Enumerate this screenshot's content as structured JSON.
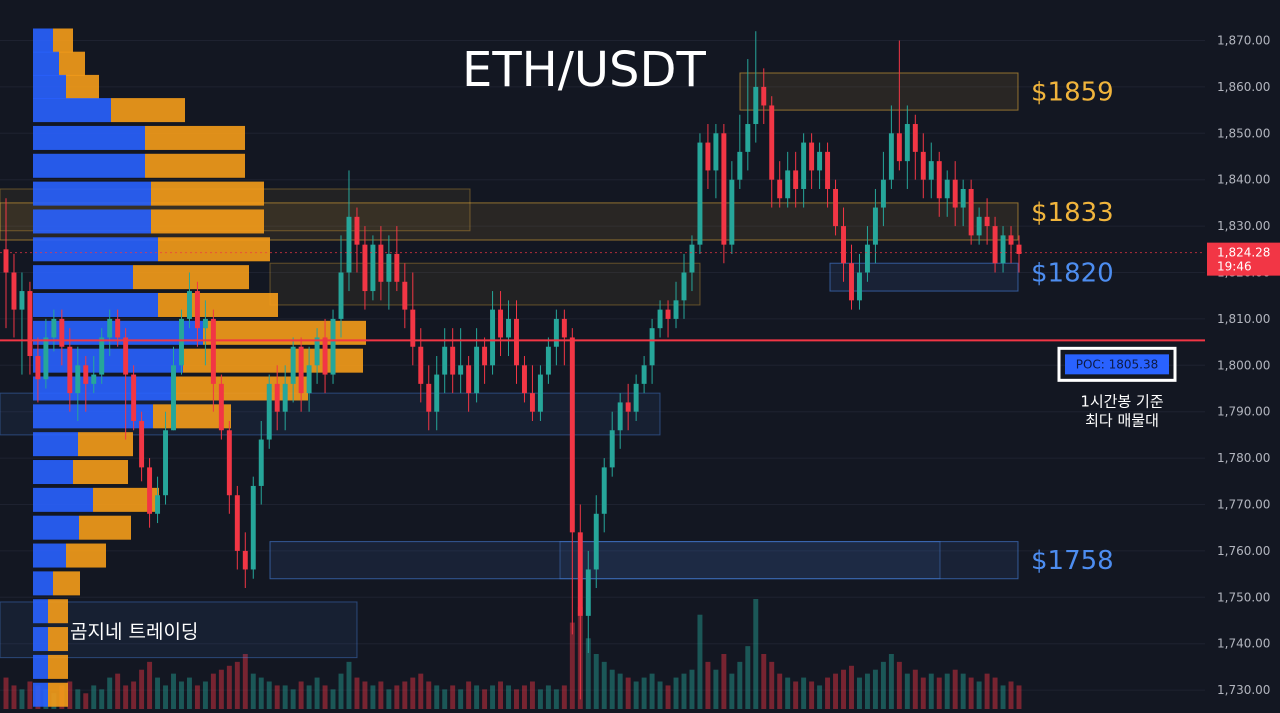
{
  "chart_data": {
    "type": "candlestick",
    "title": "ETH/USDT",
    "symbol": "ETH/USDT",
    "timeframe_note": "1시간봉 기준",
    "y_axis": {
      "ticks": [
        "1,870.00",
        "1,860.00",
        "1,850.00",
        "1,840.00",
        "1,830.00",
        "1,820.00",
        "1,810.00",
        "1,800.00",
        "1,790.00",
        "1,780.00",
        "1,770.00",
        "1,760.00",
        "1,750.00",
        "1,740.00",
        "1,730.00"
      ],
      "ylim": [
        1727,
        1874
      ],
      "position": "right"
    },
    "last_price": {
      "value": 1824.28,
      "label": "1,824.28",
      "countdown": "19:46",
      "color": "#f23645"
    },
    "poc": {
      "value": 1805.38,
      "label": "POC: 1805.38",
      "caption_line1": "1시간봉 기준",
      "caption_line2": "최다 매물대",
      "color": "#f23645"
    },
    "levels": [
      {
        "label": "$1859",
        "value": 1859,
        "zone": [
          1855,
          1863
        ],
        "color": "#f0b43c"
      },
      {
        "label": "$1833",
        "value": 1833,
        "zone": [
          1827,
          1835
        ],
        "color": "#f0b43c"
      },
      {
        "label": "$1820",
        "value": 1820,
        "zone": [
          1816,
          1822
        ],
        "color": "#4d8df0"
      },
      {
        "label": "$1758",
        "value": 1758,
        "zone": [
          1754,
          1762
        ],
        "color": "#4d8df0"
      }
    ],
    "volume_profile": {
      "rows": [
        {
          "price": 1870,
          "buy": 20,
          "sell": 20
        },
        {
          "price": 1865,
          "buy": 26,
          "sell": 26
        },
        {
          "price": 1860,
          "buy": 33,
          "sell": 33
        },
        {
          "price": 1855,
          "buy": 78,
          "sell": 74
        },
        {
          "price": 1849,
          "buy": 112,
          "sell": 100
        },
        {
          "price": 1843,
          "buy": 112,
          "sell": 100
        },
        {
          "price": 1837,
          "buy": 118,
          "sell": 113
        },
        {
          "price": 1831,
          "buy": 118,
          "sell": 113
        },
        {
          "price": 1825,
          "buy": 125,
          "sell": 112
        },
        {
          "price": 1819,
          "buy": 100,
          "sell": 116
        },
        {
          "price": 1813,
          "buy": 125,
          "sell": 120
        },
        {
          "price": 1807,
          "buy": 170,
          "sell": 163
        },
        {
          "price": 1801,
          "buy": 150,
          "sell": 180
        },
        {
          "price": 1795,
          "buy": 140,
          "sell": 135
        },
        {
          "price": 1789,
          "buy": 120,
          "sell": 78
        },
        {
          "price": 1783,
          "buy": 45,
          "sell": 55
        },
        {
          "price": 1777,
          "buy": 40,
          "sell": 55
        },
        {
          "price": 1771,
          "buy": 60,
          "sell": 66
        },
        {
          "price": 1765,
          "buy": 46,
          "sell": 52
        },
        {
          "price": 1759,
          "buy": 33,
          "sell": 40
        },
        {
          "price": 1753,
          "buy": 20,
          "sell": 27
        },
        {
          "price": 1747,
          "buy": 15,
          "sell": 20
        },
        {
          "price": 1741,
          "buy": 15,
          "sell": 20
        },
        {
          "price": 1735,
          "buy": 15,
          "sell": 20
        },
        {
          "price": 1729,
          "buy": 15,
          "sell": 20
        }
      ],
      "buy_color": "#2962ff",
      "sell_color": "#f59c1a"
    },
    "candles": [
      [
        1825,
        1820,
        1836,
        1808
      ],
      [
        1820,
        1812,
        1824,
        1806
      ],
      [
        1812,
        1816,
        1820,
        1798
      ],
      [
        1816,
        1802,
        1818,
        1798
      ],
      [
        1802,
        1797,
        1806,
        1792
      ],
      [
        1797,
        1806,
        1810,
        1795
      ],
      [
        1806,
        1810,
        1812,
        1803
      ],
      [
        1810,
        1804,
        1812,
        1800
      ],
      [
        1804,
        1794,
        1808,
        1790
      ],
      [
        1794,
        1800,
        1804,
        1788
      ],
      [
        1800,
        1796,
        1802,
        1790
      ],
      [
        1796,
        1798,
        1802,
        1794
      ],
      [
        1798,
        1806,
        1808,
        1796
      ],
      [
        1806,
        1810,
        1812,
        1802
      ],
      [
        1810,
        1806,
        1812,
        1804
      ],
      [
        1806,
        1798,
        1808,
        1784
      ],
      [
        1798,
        1788,
        1800,
        1786
      ],
      [
        1788,
        1778,
        1790,
        1775
      ],
      [
        1778,
        1768,
        1780,
        1765
      ],
      [
        1768,
        1772,
        1776,
        1766
      ],
      [
        1772,
        1786,
        1790,
        1770
      ],
      [
        1786,
        1800,
        1804,
        1786
      ],
      [
        1800,
        1810,
        1812,
        1798
      ],
      [
        1810,
        1816,
        1820,
        1808
      ],
      [
        1816,
        1808,
        1818,
        1804
      ],
      [
        1808,
        1810,
        1814,
        1800
      ],
      [
        1810,
        1796,
        1812,
        1790
      ],
      [
        1796,
        1786,
        1798,
        1784
      ],
      [
        1786,
        1772,
        1788,
        1768
      ],
      [
        1772,
        1760,
        1774,
        1756
      ],
      [
        1760,
        1756,
        1764,
        1752
      ],
      [
        1756,
        1774,
        1776,
        1754
      ],
      [
        1774,
        1784,
        1788,
        1770
      ],
      [
        1784,
        1796,
        1798,
        1782
      ],
      [
        1796,
        1790,
        1800,
        1786
      ],
      [
        1790,
        1796,
        1800,
        1786
      ],
      [
        1796,
        1804,
        1806,
        1792
      ],
      [
        1804,
        1794,
        1806,
        1790
      ],
      [
        1794,
        1800,
        1804,
        1790
      ],
      [
        1800,
        1806,
        1808,
        1796
      ],
      [
        1806,
        1798,
        1810,
        1794
      ],
      [
        1798,
        1810,
        1812,
        1796
      ],
      [
        1810,
        1820,
        1828,
        1806
      ],
      [
        1820,
        1832,
        1842,
        1816
      ],
      [
        1832,
        1826,
        1834,
        1820
      ],
      [
        1826,
        1816,
        1830,
        1812
      ],
      [
        1816,
        1826,
        1828,
        1814
      ],
      [
        1826,
        1818,
        1830,
        1814
      ],
      [
        1818,
        1824,
        1828,
        1812
      ],
      [
        1824,
        1818,
        1830,
        1816
      ],
      [
        1818,
        1812,
        1822,
        1808
      ],
      [
        1812,
        1804,
        1820,
        1800
      ],
      [
        1804,
        1796,
        1808,
        1792
      ],
      [
        1796,
        1790,
        1800,
        1786
      ],
      [
        1790,
        1798,
        1802,
        1786
      ],
      [
        1798,
        1804,
        1808,
        1794
      ],
      [
        1804,
        1798,
        1808,
        1794
      ],
      [
        1798,
        1800,
        1808,
        1794
      ],
      [
        1800,
        1794,
        1802,
        1790
      ],
      [
        1794,
        1804,
        1808,
        1792
      ],
      [
        1804,
        1800,
        1806,
        1796
      ],
      [
        1800,
        1812,
        1816,
        1798
      ],
      [
        1812,
        1806,
        1816,
        1802
      ],
      [
        1806,
        1810,
        1814,
        1802
      ],
      [
        1810,
        1800,
        1814,
        1796
      ],
      [
        1800,
        1794,
        1802,
        1792
      ],
      [
        1794,
        1790,
        1800,
        1788
      ],
      [
        1790,
        1798,
        1800,
        1788
      ],
      [
        1798,
        1804,
        1806,
        1796
      ],
      [
        1804,
        1810,
        1812,
        1800
      ],
      [
        1810,
        1806,
        1812,
        1800
      ],
      [
        1806,
        1764,
        1808,
        1742
      ],
      [
        1764,
        1746,
        1770,
        1728
      ],
      [
        1746,
        1756,
        1760,
        1738
      ],
      [
        1756,
        1768,
        1772,
        1752
      ],
      [
        1768,
        1778,
        1780,
        1764
      ],
      [
        1778,
        1786,
        1790,
        1776
      ],
      [
        1786,
        1792,
        1794,
        1782
      ],
      [
        1792,
        1790,
        1796,
        1786
      ],
      [
        1790,
        1796,
        1798,
        1788
      ],
      [
        1796,
        1800,
        1802,
        1794
      ],
      [
        1800,
        1808,
        1810,
        1796
      ],
      [
        1808,
        1812,
        1814,
        1806
      ],
      [
        1812,
        1810,
        1814,
        1806
      ],
      [
        1810,
        1814,
        1818,
        1808
      ],
      [
        1814,
        1820,
        1824,
        1810
      ],
      [
        1820,
        1826,
        1828,
        1816
      ],
      [
        1826,
        1848,
        1850,
        1824
      ],
      [
        1848,
        1842,
        1852,
        1838
      ],
      [
        1842,
        1850,
        1852,
        1836
      ],
      [
        1850,
        1826,
        1852,
        1822
      ],
      [
        1826,
        1840,
        1844,
        1824
      ],
      [
        1840,
        1846,
        1854,
        1838
      ],
      [
        1846,
        1852,
        1866,
        1842
      ],
      [
        1852,
        1860,
        1872,
        1848
      ],
      [
        1860,
        1856,
        1864,
        1852
      ],
      [
        1856,
        1840,
        1858,
        1834
      ],
      [
        1840,
        1836,
        1844,
        1834
      ],
      [
        1836,
        1842,
        1846,
        1834
      ],
      [
        1842,
        1838,
        1846,
        1834
      ],
      [
        1838,
        1848,
        1850,
        1834
      ],
      [
        1848,
        1842,
        1850,
        1838
      ],
      [
        1842,
        1846,
        1848,
        1838
      ],
      [
        1846,
        1838,
        1848,
        1834
      ],
      [
        1838,
        1830,
        1840,
        1828
      ],
      [
        1830,
        1822,
        1834,
        1818
      ],
      [
        1822,
        1814,
        1826,
        1812
      ],
      [
        1814,
        1820,
        1824,
        1812
      ],
      [
        1820,
        1826,
        1830,
        1818
      ],
      [
        1826,
        1834,
        1838,
        1822
      ],
      [
        1834,
        1840,
        1846,
        1830
      ],
      [
        1840,
        1850,
        1856,
        1838
      ],
      [
        1850,
        1844,
        1870,
        1842
      ],
      [
        1844,
        1852,
        1856,
        1838
      ],
      [
        1852,
        1846,
        1854,
        1840
      ],
      [
        1846,
        1840,
        1850,
        1836
      ],
      [
        1840,
        1844,
        1848,
        1836
      ],
      [
        1844,
        1836,
        1846,
        1832
      ],
      [
        1836,
        1840,
        1842,
        1832
      ],
      [
        1840,
        1834,
        1844,
        1830
      ],
      [
        1834,
        1838,
        1840,
        1830
      ],
      [
        1838,
        1828,
        1840,
        1826
      ],
      [
        1828,
        1832,
        1834,
        1826
      ],
      [
        1832,
        1830,
        1836,
        1826
      ],
      [
        1830,
        1822,
        1832,
        1820
      ],
      [
        1822,
        1828,
        1830,
        1820
      ],
      [
        1828,
        1826,
        1830,
        1822
      ],
      [
        1826,
        1824,
        1828,
        1820
      ]
    ],
    "volume": [
      8,
      6,
      5,
      7,
      6,
      5,
      4,
      6,
      7,
      5,
      4,
      6,
      5,
      8,
      9,
      6,
      7,
      10,
      12,
      8,
      6,
      9,
      7,
      8,
      6,
      7,
      9,
      10,
      11,
      12,
      14,
      9,
      8,
      7,
      6,
      6,
      5,
      7,
      6,
      8,
      6,
      5,
      9,
      12,
      8,
      7,
      6,
      7,
      5,
      6,
      7,
      8,
      9,
      7,
      6,
      5,
      6,
      5,
      7,
      6,
      5,
      6,
      7,
      6,
      5,
      6,
      7,
      5,
      6,
      5,
      6,
      22,
      26,
      18,
      14,
      12,
      10,
      9,
      8,
      7,
      8,
      9,
      7,
      6,
      8,
      9,
      10,
      24,
      12,
      10,
      14,
      9,
      12,
      16,
      28,
      14,
      12,
      9,
      8,
      7,
      8,
      7,
      6,
      8,
      9,
      10,
      11,
      8,
      9,
      10,
      12,
      14,
      12,
      9,
      10,
      8,
      9,
      8,
      9,
      10,
      9,
      8,
      7,
      9,
      8,
      6,
      7,
      6
    ]
  },
  "overlays": {
    "brand": "곰지네 트레이딩"
  },
  "colors": {
    "background": "#131722",
    "up": "#26a69a",
    "down": "#f23645",
    "gold": "#f0b43c",
    "blue": "#4d8df0"
  }
}
